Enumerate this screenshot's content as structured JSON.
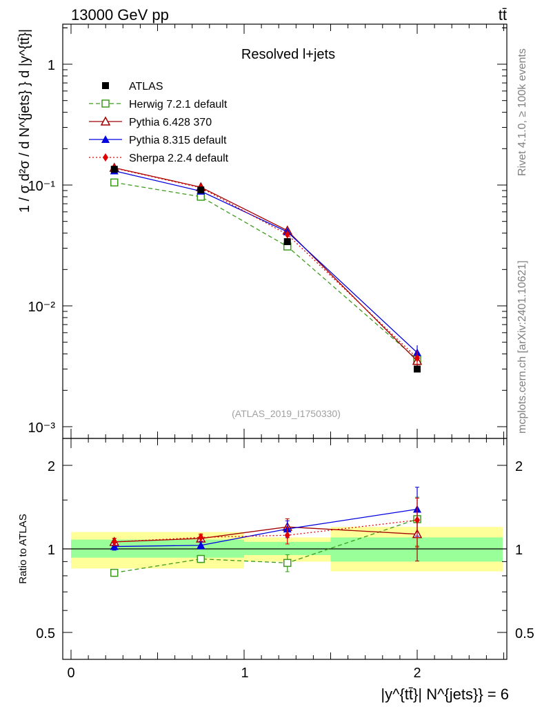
{
  "header": {
    "left": "13000 GeV pp",
    "right": "tt̄"
  },
  "side_text": {
    "rivet": "Rivet 4.1.0, ≥ 100k events",
    "mcplots": "mcplots.cern.ch [arXiv:2401.10621]"
  },
  "main_panel": {
    "title": "Resolved l+jets",
    "ylabel": "1 / σ d²σ / d N^{jets} } d |y^{tt̄}|",
    "ytick_labels": [
      "1",
      "10⁻¹",
      "10⁻²",
      "10⁻³"
    ],
    "analysis_id": "(ATLAS_2019_I1750330)"
  },
  "ratio_panel": {
    "ylabel": "Ratio to ATLAS",
    "ytick_labels": [
      "0.5",
      "1",
      "2"
    ]
  },
  "xaxis": {
    "label": "|y^{tt̄}| N^{jets}} = 6",
    "tick_labels": [
      "0",
      "1",
      "2"
    ]
  },
  "chart_data": {
    "type": "scatter",
    "x": [
      0.25,
      0.75,
      1.25,
      2.0
    ],
    "bin_edges": [
      0,
      0.5,
      1.0,
      1.5,
      2.5
    ],
    "xlim": [
      -0.1,
      2.55
    ],
    "ylim": [
      0.0009,
      2.2
    ],
    "ratio_ylim": [
      0.4,
      2.4
    ],
    "yscale": "log",
    "series": [
      {
        "name": "ATLAS",
        "values": [
          0.135,
          0.091,
          0.034,
          0.003
        ],
        "ratio": [
          1.0,
          1.0,
          1.0,
          1.0
        ],
        "color": "#000000",
        "marker": "square-filled",
        "line": "none"
      },
      {
        "name": "Herwig 7.2.1 default",
        "values": [
          0.105,
          0.08,
          0.031,
          0.0036
        ],
        "ratio": [
          0.82,
          0.92,
          0.89,
          1.28
        ],
        "color": "#3a9a1a",
        "marker": "square-open",
        "line": "dashed"
      },
      {
        "name": "Pythia 6.428 370",
        "values": [
          0.139,
          0.096,
          0.042,
          0.0035
        ],
        "ratio": [
          1.06,
          1.09,
          1.2,
          1.13
        ],
        "color": "#a00000",
        "marker": "triangle-open",
        "line": "solid"
      },
      {
        "name": "Pythia 8.315 default",
        "values": [
          0.131,
          0.089,
          0.041,
          0.0041
        ],
        "ratio": [
          1.02,
          1.03,
          1.18,
          1.39
        ],
        "color": "#0000e0",
        "marker": "triangle-filled",
        "line": "solid"
      },
      {
        "name": "Sherpa 2.2.4 default",
        "values": [
          0.138,
          0.095,
          0.039,
          0.0037
        ],
        "ratio": [
          1.06,
          1.1,
          1.12,
          1.27
        ],
        "color": "#e00000",
        "marker": "diamond-filled",
        "line": "dotted"
      }
    ],
    "ratio_errors": [
      0.03,
      0.03,
      0.07,
      0.2
    ],
    "ratio_bands": {
      "inner": [
        [
          0.93,
          1.08
        ],
        [
          0.93,
          1.08
        ],
        [
          0.95,
          1.06
        ],
        [
          0.9,
          1.1
        ]
      ],
      "outer": [
        [
          0.85,
          1.15
        ],
        [
          0.85,
          1.15
        ],
        [
          0.9,
          1.1
        ],
        [
          0.83,
          1.2
        ]
      ]
    },
    "legend_position": "top-left"
  },
  "colors": {
    "band_outer": "#ffff99",
    "band_inner": "#99ff99"
  }
}
